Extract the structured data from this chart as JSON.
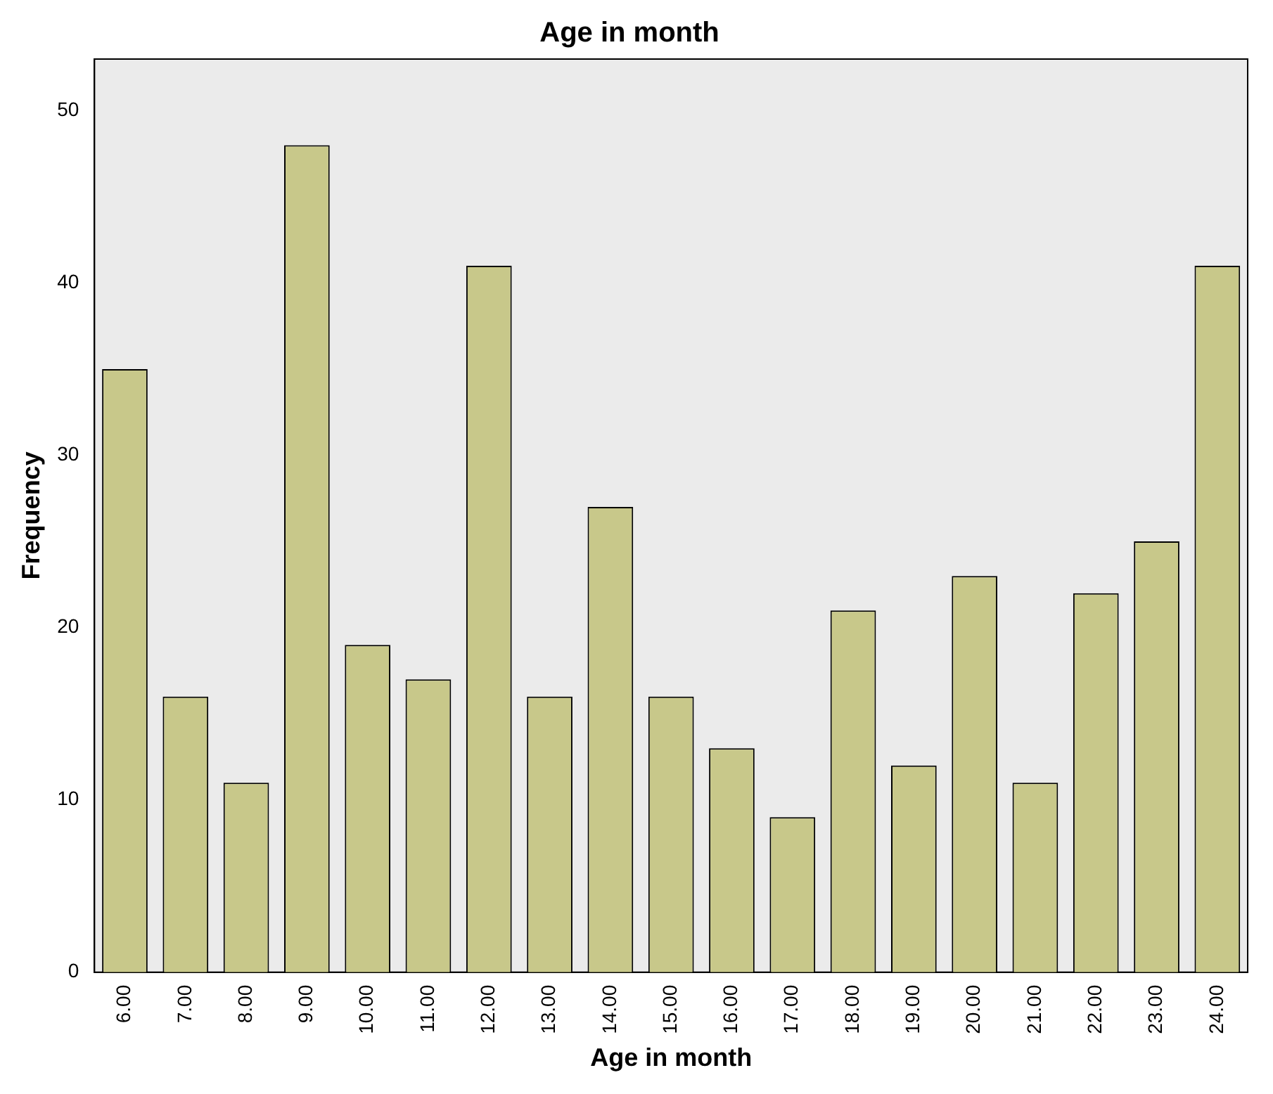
{
  "chart_data": {
    "type": "bar",
    "title": "Age in month",
    "xlabel": "Age in month",
    "ylabel": "Frequency",
    "categories": [
      "6.00",
      "7.00",
      "8.00",
      "9.00",
      "10.00",
      "11.00",
      "12.00",
      "13.00",
      "14.00",
      "15.00",
      "16.00",
      "17.00",
      "18.00",
      "19.00",
      "20.00",
      "21.00",
      "22.00",
      "23.00",
      "24.00"
    ],
    "values": [
      35,
      16,
      11,
      48,
      19,
      17,
      41,
      16,
      27,
      16,
      13,
      9,
      21,
      12,
      23,
      11,
      22,
      25,
      41
    ],
    "color": "#c8c88a",
    "ylim": [
      0,
      53
    ],
    "yticks": [
      0,
      10,
      20,
      30,
      40,
      50
    ],
    "grid": false,
    "legend": false
  }
}
